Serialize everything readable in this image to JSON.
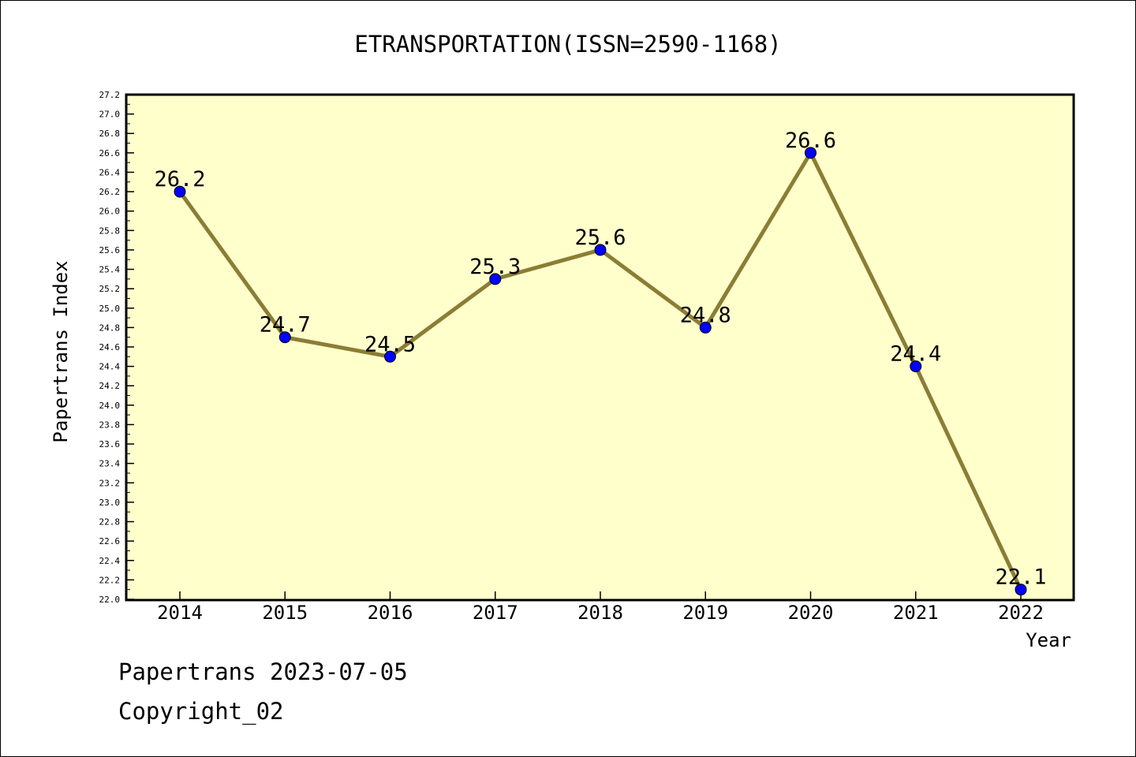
{
  "chart_data": {
    "type": "line",
    "title": "ETRANSPORTATION(ISSN=2590-1168)",
    "xlabel": "Year",
    "ylabel": "Papertrans Index",
    "categories": [
      "2014",
      "2015",
      "2016",
      "2017",
      "2018",
      "2019",
      "2020",
      "2021",
      "2022"
    ],
    "series": [
      {
        "values": [
          26.2,
          24.7,
          24.5,
          25.3,
          25.6,
          24.8,
          26.6,
          24.4,
          22.1
        ]
      }
    ],
    "data_labels": [
      "26.2",
      "24.7",
      "24.5",
      "25.3",
      "25.6",
      "24.8",
      "26.6",
      "24.4",
      "22.1"
    ],
    "ylim": [
      22.0,
      27.2
    ],
    "y_ticks": [
      "22.0",
      "22.2",
      "22.4",
      "22.6",
      "22.8",
      "23.0",
      "23.2",
      "23.4",
      "23.6",
      "23.8",
      "24.0",
      "24.2",
      "24.4",
      "24.6",
      "24.8",
      "25.0",
      "25.2",
      "25.4",
      "25.6",
      "25.8",
      "26.0",
      "26.2",
      "26.4",
      "26.6",
      "26.8",
      "27.0",
      "27.2"
    ],
    "grid": false,
    "legend": "none",
    "colors": {
      "plot_background": "#ffffcc",
      "line": "#8b7d35",
      "marker": "#0000ff"
    }
  },
  "footer": {
    "line1": "Papertrans 2023-07-05",
    "line2": "Copyright_02"
  }
}
